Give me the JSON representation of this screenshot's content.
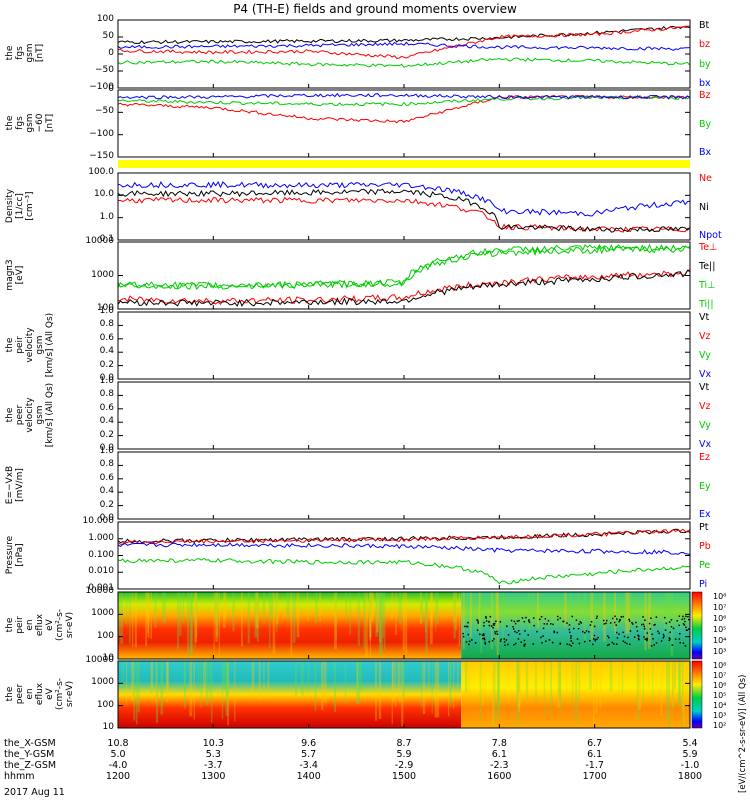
{
  "title": "P4 (TH-E) fields and ground moments overview",
  "date_label": "2017 Aug 11",
  "x_rows": [
    {
      "label": "the_X-GSM",
      "values": [
        "10.8",
        "10.3",
        "9.6",
        "8.7",
        "7.8",
        "6.7",
        "5.4"
      ]
    },
    {
      "label": "the_Y-GSM",
      "values": [
        "5.0",
        "5.3",
        "5.7",
        "5.9",
        "6.1",
        "6.1",
        "5.9"
      ]
    },
    {
      "label": "the_Z-GSM",
      "values": [
        "-4.0",
        "-3.7",
        "-3.4",
        "-2.9",
        "-2.3",
        "-1.7",
        "-1.0"
      ]
    },
    {
      "label": "hhmm",
      "values": [
        "1200",
        "1300",
        "1400",
        "1500",
        "1600",
        "1700",
        "1800"
      ]
    }
  ],
  "panels": [
    {
      "ylabel": [
        "the",
        "fgs",
        "gsm",
        "[nT]"
      ],
      "legend": [
        {
          "text": "Bt",
          "color": "#000000"
        },
        {
          "text": "bz",
          "color": "#ff0000"
        },
        {
          "text": "by",
          "color": "#00cc00"
        },
        {
          "text": "bx",
          "color": "#0000ff"
        }
      ],
      "ticks": [
        "100",
        "50",
        "0",
        "−50",
        "−100"
      ]
    },
    {
      "ylabel": [
        "the",
        "fgs",
        "gsm",
        "−60",
        "[nT]"
      ],
      "legend": [
        {
          "text": "Bz",
          "color": "#ff0000"
        },
        {
          "text": "By",
          "color": "#00cc00"
        },
        {
          "text": "Bx",
          "color": "#0000ff"
        }
      ],
      "ticks": [
        "0",
        "−50",
        "−100",
        "−150"
      ]
    },
    {
      "ylabel": [
        "Density",
        "[1/cc]",
        "[cm⁻³]"
      ],
      "legend": [
        {
          "text": "Ne",
          "color": "#ff0000"
        },
        {
          "text": "Ni",
          "color": "#000000"
        },
        {
          "text": "Npot",
          "color": "#0000ff"
        }
      ],
      "ticks": [
        "100.0",
        "10.0",
        "1.0",
        "0.1"
      ]
    },
    {
      "ylabel": [
        "magπ3",
        "[eV]"
      ],
      "legend": [
        {
          "text": "Te⊥",
          "color": "#ff0000"
        },
        {
          "text": "Te||",
          "color": "#000000"
        },
        {
          "text": "Ti⊥",
          "color": "#00cc00"
        },
        {
          "text": "Ti||",
          "color": "#00cc00"
        }
      ],
      "ticks": [
        "10000",
        "1000",
        "100"
      ]
    },
    {
      "ylabel": [
        "the",
        "peir",
        "velocity",
        "gsm",
        "[km/s] (All Qs)"
      ],
      "legend": [
        {
          "text": "Vt",
          "color": "#000000"
        },
        {
          "text": "Vz",
          "color": "#ff0000"
        },
        {
          "text": "Vy",
          "color": "#00cc00"
        },
        {
          "text": "Vx",
          "color": "#0000ff"
        }
      ],
      "ticks": [
        "1.0",
        "0.8",
        "0.6",
        "0.4",
        "0.2",
        "0.0"
      ]
    },
    {
      "ylabel": [
        "the",
        "peer",
        "velocity",
        "gsm",
        "[km/s] (All Qs)"
      ],
      "legend": [
        {
          "text": "Vt",
          "color": "#000000"
        },
        {
          "text": "Vz",
          "color": "#ff0000"
        },
        {
          "text": "Vy",
          "color": "#00cc00"
        },
        {
          "text": "Vx",
          "color": "#0000ff"
        }
      ],
      "ticks": [
        "1.0",
        "0.8",
        "0.6",
        "0.4",
        "0.2",
        "0.0"
      ]
    },
    {
      "ylabel": [
        "E=−VxB",
        "[mV/m]"
      ],
      "legend": [
        {
          "text": "Ez",
          "color": "#ff0000"
        },
        {
          "text": "Ey",
          "color": "#00cc00"
        },
        {
          "text": "Ex",
          "color": "#0000ff"
        }
      ],
      "ticks": [
        "1.0",
        "0.8",
        "0.6",
        "0.4",
        "0.2",
        "0.0"
      ]
    },
    {
      "ylabel": [
        "Pressure",
        "[nPa]"
      ],
      "legend": [
        {
          "text": "Pt",
          "color": "#000000"
        },
        {
          "text": "Pb",
          "color": "#ff0000"
        },
        {
          "text": "Pe",
          "color": "#00cc00"
        },
        {
          "text": "Pi",
          "color": "#0000ff"
        }
      ],
      "ticks": [
        "10.000",
        "1.000",
        "0.100",
        "0.010",
        "0.001"
      ]
    },
    {
      "ylabel": [
        "the",
        "peir",
        "en",
        "eflux",
        "eV",
        "(cm²-s-",
        "sr-eV)"
      ],
      "legend": [],
      "ticks": [
        "10000",
        "1000",
        "100",
        "10"
      ]
    },
    {
      "ylabel": [
        "the",
        "peer",
        "en",
        "eflux",
        "eV",
        "(cm²-s-",
        "sr-eV)"
      ],
      "legend": [],
      "ticks": [
        "10000",
        "1000",
        "100",
        "10"
      ]
    }
  ],
  "colorbar": {
    "upper_labels": [
      "10⁸",
      "10⁷",
      "10⁶",
      "10⁵",
      "10⁴",
      "10³"
    ],
    "lower_labels": [
      "10⁸",
      "10⁷",
      "10⁶",
      "10⁵",
      "10⁴",
      "10³",
      "10²"
    ],
    "units": "[eV/(cm^2-s-sr-eV)] (All Qs)"
  },
  "chart_data": {
    "type": "line",
    "title": "P4 (TH-E) fields and ground moments overview",
    "x": [
      "1200",
      "1300",
      "1400",
      "1500",
      "1600",
      "1700",
      "1800"
    ],
    "xlabel": "hhmm",
    "panels": [
      {
        "name": "the fgs gsm [nT]",
        "ylim": [
          -100,
          100
        ],
        "series": [
          {
            "name": "Bt",
            "values": [
              35,
              36,
              38,
              40,
              48,
              62,
              82
            ]
          },
          {
            "name": "bz",
            "values": [
              10,
              5,
              8,
              -10,
              50,
              58,
              80
            ]
          },
          {
            "name": "by",
            "values": [
              -25,
              -22,
              -30,
              -35,
              -15,
              -20,
              -30
            ]
          },
          {
            "name": "bx",
            "values": [
              20,
              22,
              25,
              30,
              20,
              18,
              15
            ]
          }
        ]
      },
      {
        "name": "the fgs gsm -60 [nT]",
        "ylim": [
          -170,
          20
        ],
        "series": [
          {
            "name": "Bz",
            "values": [
              -20,
              -30,
              -60,
              -70,
              0,
              0,
              0
            ]
          },
          {
            "name": "By",
            "values": [
              -10,
              -15,
              -20,
              -20,
              -5,
              -2,
              -2
            ]
          },
          {
            "name": "Bx",
            "values": [
              0,
              0,
              5,
              5,
              0,
              0,
              0
            ]
          }
        ]
      },
      {
        "name": "Density [1/cc]",
        "ylim": [
          0.1,
          100
        ],
        "scale": "log",
        "series": [
          {
            "name": "Ne",
            "values": [
              6,
              6,
              6,
              6,
              0.4,
              0.3,
              0.3
            ]
          },
          {
            "name": "Ni",
            "values": [
              12,
              12,
              13,
              15,
              0.4,
              0.3,
              0.3
            ]
          },
          {
            "name": "Npot",
            "values": [
              30,
              30,
              28,
              30,
              2,
              1.5,
              5
            ]
          }
        ]
      },
      {
        "name": "magπ3 [eV]",
        "ylim": [
          30,
          10000
        ],
        "scale": "log",
        "series": [
          {
            "name": "Te⊥",
            "values": [
              70,
              60,
              65,
              80,
              300,
              500,
              700
            ]
          },
          {
            "name": "Te||",
            "values": [
              55,
              50,
              55,
              60,
              250,
              400,
              650
            ]
          },
          {
            "name": "Ti⊥",
            "values": [
              250,
              230,
              250,
              300,
              5000,
              6000,
              6000
            ]
          },
          {
            "name": "Ti||",
            "values": [
              230,
              220,
              240,
              280,
              4000,
              5000,
              5500
            ]
          }
        ]
      },
      {
        "name": "Pressure [nPa]",
        "ylim": [
          0.001,
          10
        ],
        "scale": "log",
        "series": [
          {
            "name": "Pt",
            "values": [
              0.7,
              0.8,
              0.9,
              1,
              1.2,
              1.8,
              3
            ]
          },
          {
            "name": "Pb",
            "values": [
              0.6,
              0.7,
              0.8,
              0.9,
              1.2,
              1.8,
              3
            ]
          },
          {
            "name": "Pe",
            "values": [
              0.05,
              0.05,
              0.04,
              0.04,
              0.002,
              0.008,
              0.02
            ]
          },
          {
            "name": "Pi",
            "values": [
              0.4,
              0.45,
              0.4,
              0.35,
              0.2,
              0.18,
              0.15
            ]
          }
        ]
      }
    ]
  }
}
